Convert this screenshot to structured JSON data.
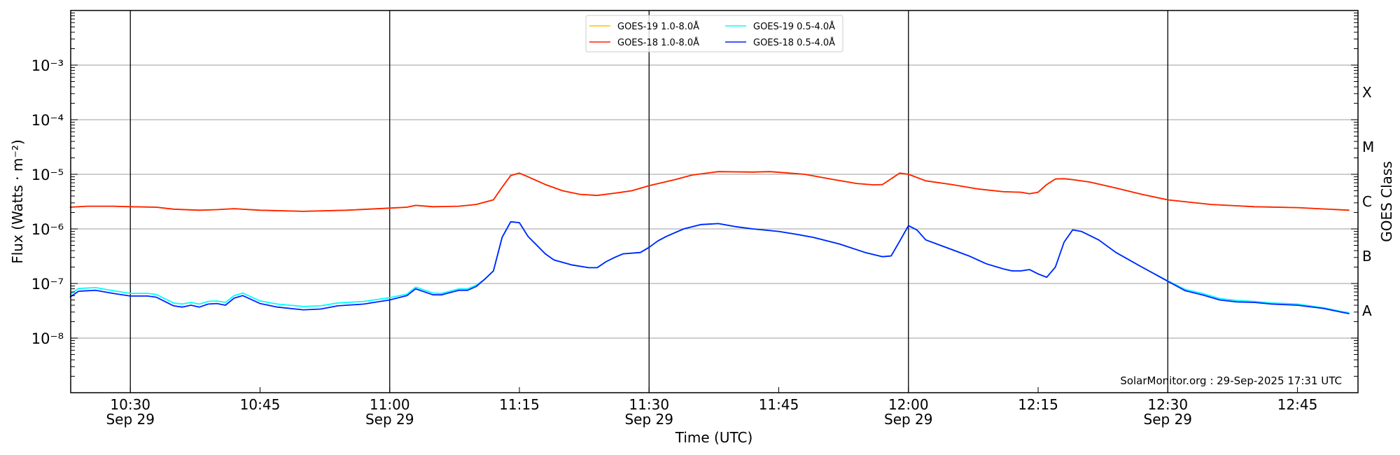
{
  "chart_data": {
    "type": "line",
    "xlabel": "Time (UTC)",
    "ylabel": "Flux (Watts · m⁻²)",
    "y2label": "GOES Class",
    "yscale": "log",
    "ylim": [
      1e-09,
      0.01
    ],
    "xlim": [
      "10:23",
      "12:52"
    ],
    "grid": "horizontal at decades",
    "yticks": [
      1e-08,
      1e-07,
      1e-06,
      1e-05,
      0.0001,
      0.001
    ],
    "ytick_labels": [
      "10⁻⁸",
      "10⁻⁷",
      "10⁻⁶",
      "10⁻⁵",
      "10⁻⁴",
      "10⁻³"
    ],
    "xticks": [
      {
        "t": "10:30",
        "label": "10:30",
        "date": "Sep 29",
        "major": true
      },
      {
        "t": "10:45",
        "label": "10:45",
        "date": "",
        "major": false
      },
      {
        "t": "11:00",
        "label": "11:00",
        "date": "Sep 29",
        "major": true
      },
      {
        "t": "11:15",
        "label": "11:15",
        "date": "",
        "major": false
      },
      {
        "t": "11:30",
        "label": "11:30",
        "date": "Sep 29",
        "major": true
      },
      {
        "t": "11:45",
        "label": "11:45",
        "date": "",
        "major": false
      },
      {
        "t": "12:00",
        "label": "12:00",
        "date": "Sep 29",
        "major": true
      },
      {
        "t": "12:15",
        "label": "12:15",
        "date": "",
        "major": false
      },
      {
        "t": "12:30",
        "label": "12:30",
        "date": "Sep 29",
        "major": true
      },
      {
        "t": "12:45",
        "label": "12:45",
        "date": "",
        "major": false
      }
    ],
    "goes_classes": [
      {
        "label": "A",
        "flux": 1e-08
      },
      {
        "label": "B",
        "flux": 1e-07
      },
      {
        "label": "C",
        "flux": 1e-06
      },
      {
        "label": "M",
        "flux": 1e-05
      },
      {
        "label": "X",
        "flux": 0.0001
      }
    ],
    "legend_position": "top-center",
    "annotation": "SolarMonitor.org : 29-Sep-2025 17:31 UTC",
    "series": [
      {
        "name": "GOES-19 1.0-8.0Å",
        "color": "#ffc000",
        "x": [
          "10:23",
          "10:25",
          "10:28",
          "10:30",
          "10:33",
          "10:35",
          "10:38",
          "10:40",
          "10:42",
          "10:45",
          "10:50",
          "10:55",
          "11:00",
          "11:02",
          "11:03",
          "11:05",
          "11:08",
          "11:10",
          "11:12",
          "11:13",
          "11:14",
          "11:15",
          "11:16",
          "11:18",
          "11:20",
          "11:22",
          "11:24",
          "11:26",
          "11:28",
          "11:30",
          "11:33",
          "11:35",
          "11:38",
          "11:42",
          "11:44",
          "11:48",
          "11:51",
          "11:54",
          "11:56",
          "11:57",
          "11:59",
          "12:00",
          "12:02",
          "12:05",
          "12:08",
          "12:11",
          "12:13",
          "12:14",
          "12:15",
          "12:16",
          "12:17",
          "12:18",
          "12:19",
          "12:21",
          "12:24",
          "12:27",
          "12:30",
          "12:35",
          "12:40",
          "12:45",
          "12:51"
        ],
        "y": [
          2.5e-06,
          2.6e-06,
          2.6e-06,
          2.55e-06,
          2.5e-06,
          2.3e-06,
          2.2e-06,
          2.25e-06,
          2.35e-06,
          2.2e-06,
          2.1e-06,
          2.2e-06,
          2.4e-06,
          2.5e-06,
          2.7e-06,
          2.55e-06,
          2.6e-06,
          2.8e-06,
          3.4e-06,
          5.8e-06,
          9.5e-06,
          1.05e-05,
          9e-06,
          6.5e-06,
          5e-06,
          4.3e-06,
          4.1e-06,
          4.5e-06,
          5e-06,
          6.2e-06,
          8e-06,
          9.7e-06,
          1.12e-05,
          1.1e-05,
          1.12e-05,
          1e-05,
          8.2e-06,
          6.8e-06,
          6.4e-06,
          6.5e-06,
          1.05e-05,
          1e-05,
          7.6e-06,
          6.5e-06,
          5.4e-06,
          4.8e-06,
          4.7e-06,
          4.4e-06,
          4.7e-06,
          6.5e-06,
          8.2e-06,
          8.3e-06,
          8e-06,
          7.2e-06,
          5.6e-06,
          4.3e-06,
          3.4e-06,
          2.8e-06,
          2.55e-06,
          2.45e-06,
          2.2e-06
        ]
      },
      {
        "name": "GOES-19 0.5-4.0Å",
        "color": "#00ffff",
        "x": [
          "10:23",
          "10:24",
          "10:26",
          "10:28",
          "10:30",
          "10:32",
          "10:33",
          "10:35",
          "10:36",
          "10:37",
          "10:38",
          "10:39",
          "10:40",
          "10:41",
          "10:42",
          "10:43",
          "10:45",
          "10:47",
          "10:50",
          "10:52",
          "10:54",
          "10:57",
          "11:00",
          "11:02",
          "11:03",
          "11:05",
          "11:06",
          "11:08",
          "11:09",
          "11:10",
          "11:11",
          "11:12",
          "11:13",
          "11:14",
          "11:15",
          "11:16",
          "11:18",
          "11:19",
          "11:21",
          "11:23",
          "11:24",
          "11:25",
          "11:26",
          "11:27",
          "11:29",
          "11:30",
          "11:31",
          "11:32",
          "11:34",
          "11:36",
          "11:38",
          "11:40",
          "11:42",
          "11:45",
          "11:47",
          "11:49",
          "11:52",
          "11:55",
          "11:57",
          "11:58",
          "11:59",
          "12:00",
          "12:01",
          "12:02",
          "12:04",
          "12:07",
          "12:09",
          "12:11",
          "12:12",
          "12:13",
          "12:14",
          "12:15",
          "12:16",
          "12:17",
          "12:18",
          "12:19",
          "12:20",
          "12:22",
          "12:24",
          "12:27",
          "12:30",
          "12:32",
          "12:34",
          "12:36",
          "12:38",
          "12:40",
          "12:42",
          "12:45",
          "12:48",
          "12:50",
          "12:51"
        ],
        "y": [
          6.3e-08,
          8.1e-08,
          8.4e-08,
          7.4e-08,
          6.6e-08,
          6.6e-08,
          6.3e-08,
          4.4e-08,
          4.2e-08,
          4.5e-08,
          4.2e-08,
          4.7e-08,
          4.8e-08,
          4.5e-08,
          6e-08,
          6.7e-08,
          4.8e-08,
          4.2e-08,
          3.8e-08,
          3.9e-08,
          4.4e-08,
          4.7e-08,
          5.5e-08,
          6.4e-08,
          8.6e-08,
          6.7e-08,
          6.6e-08,
          8e-08,
          8e-08,
          9.3e-08,
          1.2e-07,
          1.7e-07,
          7e-07,
          1.35e-06,
          1.3e-06,
          7.3e-07,
          3.5e-07,
          2.7e-07,
          2.2e-07,
          1.95e-07,
          1.95e-07,
          2.5e-07,
          3e-07,
          3.5e-07,
          3.7e-07,
          4.6e-07,
          6e-07,
          7.3e-07,
          1e-06,
          1.2e-06,
          1.25e-06,
          1.1e-06,
          1e-06,
          9e-07,
          8e-07,
          7e-07,
          5.3e-07,
          3.7e-07,
          3.1e-07,
          3.2e-07,
          6e-07,
          1.15e-06,
          9.5e-07,
          6.3e-07,
          4.8e-07,
          3.2e-07,
          2.3e-07,
          1.85e-07,
          1.7e-07,
          1.7e-07,
          1.8e-07,
          1.5e-07,
          1.3e-07,
          2e-07,
          5.7e-07,
          9.6e-07,
          9e-07,
          6.3e-07,
          3.7e-07,
          2e-07,
          1.12e-07,
          7.8e-08,
          6.6e-08,
          5.3e-08,
          4.9e-08,
          4.7e-08,
          4.4e-08,
          4.2e-08,
          3.6e-08,
          3.1e-08,
          2.9e-08
        ]
      },
      {
        "name": "GOES-18 1.0-8.0Å",
        "color": "#ff2000",
        "x": [
          "10:23",
          "10:25",
          "10:28",
          "10:30",
          "10:33",
          "10:35",
          "10:38",
          "10:40",
          "10:42",
          "10:45",
          "10:50",
          "10:55",
          "11:00",
          "11:02",
          "11:03",
          "11:05",
          "11:08",
          "11:10",
          "11:12",
          "11:13",
          "11:14",
          "11:15",
          "11:16",
          "11:18",
          "11:20",
          "11:22",
          "11:24",
          "11:26",
          "11:28",
          "11:30",
          "11:33",
          "11:35",
          "11:38",
          "11:42",
          "11:44",
          "11:48",
          "11:51",
          "11:54",
          "11:56",
          "11:57",
          "11:59",
          "12:00",
          "12:02",
          "12:05",
          "12:08",
          "12:11",
          "12:13",
          "12:14",
          "12:15",
          "12:16",
          "12:17",
          "12:18",
          "12:19",
          "12:21",
          "12:24",
          "12:27",
          "12:30",
          "12:35",
          "12:40",
          "12:45",
          "12:51"
        ],
        "y": [
          2.5e-06,
          2.6e-06,
          2.6e-06,
          2.55e-06,
          2.5e-06,
          2.3e-06,
          2.2e-06,
          2.25e-06,
          2.35e-06,
          2.2e-06,
          2.1e-06,
          2.2e-06,
          2.4e-06,
          2.5e-06,
          2.7e-06,
          2.55e-06,
          2.6e-06,
          2.8e-06,
          3.4e-06,
          5.8e-06,
          9.5e-06,
          1.05e-05,
          9e-06,
          6.5e-06,
          5e-06,
          4.3e-06,
          4.1e-06,
          4.5e-06,
          5e-06,
          6.2e-06,
          8e-06,
          9.7e-06,
          1.12e-05,
          1.1e-05,
          1.12e-05,
          1e-05,
          8.2e-06,
          6.8e-06,
          6.4e-06,
          6.5e-06,
          1.05e-05,
          1e-05,
          7.6e-06,
          6.5e-06,
          5.4e-06,
          4.8e-06,
          4.7e-06,
          4.4e-06,
          4.7e-06,
          6.5e-06,
          8.2e-06,
          8.3e-06,
          8e-06,
          7.2e-06,
          5.6e-06,
          4.3e-06,
          3.4e-06,
          2.8e-06,
          2.55e-06,
          2.45e-06,
          2.2e-06
        ]
      },
      {
        "name": "GOES-18 0.5-4.0Å",
        "color": "#0020ff",
        "x": [
          "10:23",
          "10:24",
          "10:26",
          "10:28",
          "10:30",
          "10:32",
          "10:33",
          "10:35",
          "10:36",
          "10:37",
          "10:38",
          "10:39",
          "10:40",
          "10:41",
          "10:42",
          "10:43",
          "10:45",
          "10:47",
          "10:50",
          "10:52",
          "10:54",
          "10:57",
          "11:00",
          "11:02",
          "11:03",
          "11:05",
          "11:06",
          "11:08",
          "11:09",
          "11:10",
          "11:11",
          "11:12",
          "11:13",
          "11:14",
          "11:15",
          "11:16",
          "11:18",
          "11:19",
          "11:21",
          "11:23",
          "11:24",
          "11:25",
          "11:26",
          "11:27",
          "11:29",
          "11:30",
          "11:31",
          "11:32",
          "11:34",
          "11:36",
          "11:38",
          "11:40",
          "11:42",
          "11:45",
          "11:47",
          "11:49",
          "11:52",
          "11:55",
          "11:57",
          "11:58",
          "11:59",
          "12:00",
          "12:01",
          "12:02",
          "12:04",
          "12:07",
          "12:09",
          "12:11",
          "12:12",
          "12:13",
          "12:14",
          "12:15",
          "12:16",
          "12:17",
          "12:18",
          "12:19",
          "12:20",
          "12:22",
          "12:24",
          "12:27",
          "12:30",
          "12:32",
          "12:34",
          "12:36",
          "12:38",
          "12:40",
          "12:42",
          "12:45",
          "12:48",
          "12:50",
          "12:51"
        ],
        "y": [
          5.6e-08,
          7.2e-08,
          7.5e-08,
          6.6e-08,
          5.9e-08,
          5.9e-08,
          5.6e-08,
          3.9e-08,
          3.7e-08,
          4e-08,
          3.7e-08,
          4.2e-08,
          4.3e-08,
          4e-08,
          5.4e-08,
          6e-08,
          4.3e-08,
          3.7e-08,
          3.3e-08,
          3.4e-08,
          3.9e-08,
          4.2e-08,
          5e-08,
          6e-08,
          8e-08,
          6.2e-08,
          6.2e-08,
          7.5e-08,
          7.5e-08,
          8.8e-08,
          1.2e-07,
          1.7e-07,
          7e-07,
          1.35e-06,
          1.3e-06,
          7.3e-07,
          3.5e-07,
          2.7e-07,
          2.2e-07,
          1.95e-07,
          1.95e-07,
          2.5e-07,
          3e-07,
          3.5e-07,
          3.7e-07,
          4.6e-07,
          6e-07,
          7.3e-07,
          1e-06,
          1.2e-06,
          1.25e-06,
          1.1e-06,
          1e-06,
          9e-07,
          8e-07,
          7e-07,
          5.3e-07,
          3.7e-07,
          3.1e-07,
          3.2e-07,
          6e-07,
          1.15e-06,
          9.5e-07,
          6.3e-07,
          4.8e-07,
          3.2e-07,
          2.3e-07,
          1.85e-07,
          1.7e-07,
          1.7e-07,
          1.8e-07,
          1.5e-07,
          1.3e-07,
          2e-07,
          5.7e-07,
          9.6e-07,
          9e-07,
          6.3e-07,
          3.7e-07,
          2e-07,
          1.1e-07,
          7.4e-08,
          6.2e-08,
          5e-08,
          4.6e-08,
          4.5e-08,
          4.2e-08,
          4e-08,
          3.5e-08,
          3e-08,
          2.8e-08
        ]
      }
    ]
  }
}
